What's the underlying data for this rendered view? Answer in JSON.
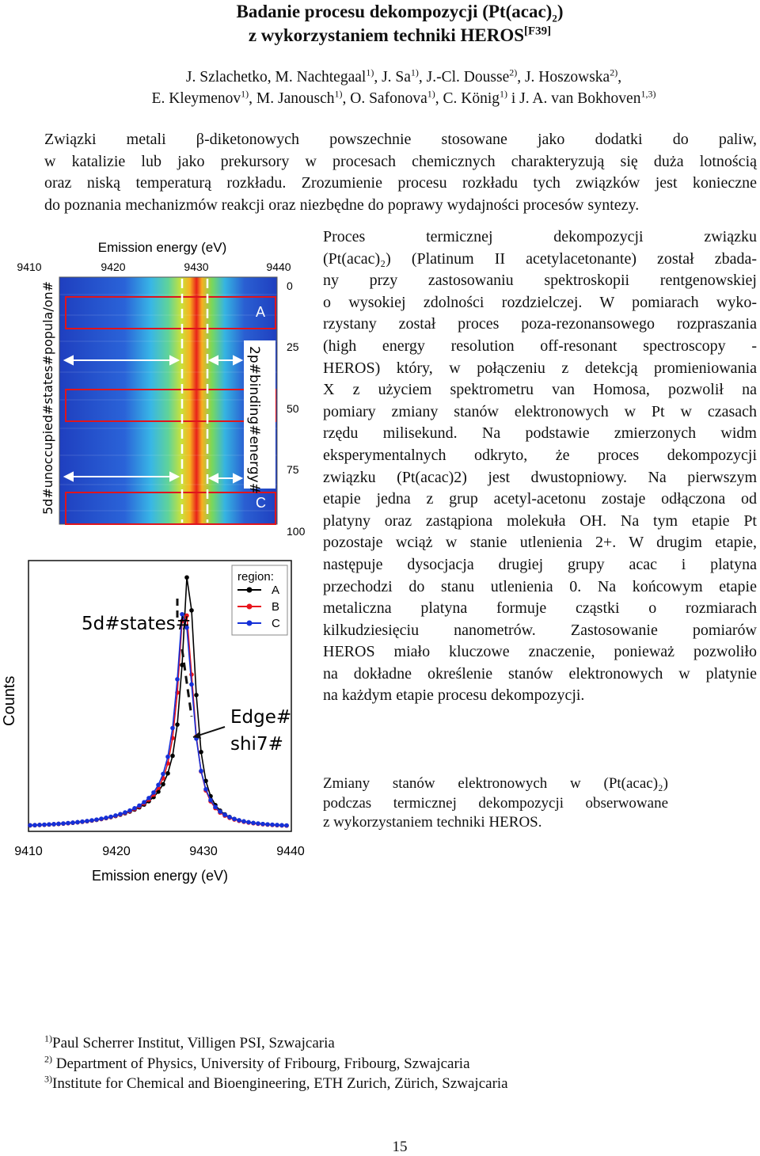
{
  "title": {
    "line1": "Badanie procesu dekompozycji (Pt(acac)",
    "line1_sub": "2",
    "line1_end": ")",
    "line2": "z wykorzystaniem techniki HEROS",
    "line2_sup": "[F39]"
  },
  "authors": {
    "line1": [
      {
        "name": "J. Szlachetko, ",
        "sup": ""
      },
      {
        "name": "M. Nachtegaal",
        "sup": "1)"
      },
      {
        "name": ", J. Sa",
        "sup": "1)"
      },
      {
        "name": ", J.-Cl. Dousse",
        "sup": "2)"
      },
      {
        "name": ", J. Hoszowska",
        "sup": "2)"
      },
      {
        "name": ",",
        "sup": ""
      }
    ],
    "line2": [
      {
        "name": "E. Kleymenov",
        "sup": "1)"
      },
      {
        "name": ", M. Janousch",
        "sup": "1)"
      },
      {
        "name": ", O. Safonova",
        "sup": "1)"
      },
      {
        "name": ", C. König",
        "sup": "1)"
      },
      {
        "name": " i J. A. van Bokhoven",
        "sup": "1,3)"
      }
    ]
  },
  "intro": [
    "Związki metali β-diketonowych powszechnie stosowane jako dodatki do paliw,",
    "w katalizie lub jako prekursory w procesach chemicznych charakteryzują się duża lotnością",
    "oraz niską temperaturą rozkładu. Zrozumienie procesu rozkładu tych związków jest konieczne",
    "do poznania mechanizmów reakcji oraz niezbędne do poprawy wydajności procesów syntezy."
  ],
  "body": [
    "Proces termicznej dekompozycji związku",
    "(Pt(acac)₂) (Platinum II acetylacetonante) został zbada-",
    "ny przy zastosowaniu spektroskopii rentgenowskiej",
    "o wysokiej zdolności rozdzielczej. W pomiarach wyko-",
    "rzystany został proces poza-rezonansowego rozpraszania",
    "(high energy resolution off-resonant spectroscopy -",
    "HEROS) który, w połączeniu z detekcją promieniowania",
    "X z użyciem spektrometru van Homosa, pozwolił na",
    "pomiary zmiany stanów elektronowych w Pt w czasach",
    "rzędu milisekund. Na podstawie zmierzonych widm",
    "eksperymentalnych odkryto, że proces dekompozycji",
    "związku (Pt(acac)2) jest dwustopniowy. Na pierwszym",
    "etapie jedna z grup acetyl-acetonu zostaje odłączona od",
    "platyny oraz zastąpiona molekuła OH. Na tym etapie Pt",
    "pozostaje wciąż w stanie utlenienia 2+. W drugim etapie,",
    "następuje dysocjacja drugiej grupy acac i platyna",
    "przechodzi do stanu utlenienia 0. Na końcowym etapie",
    "metaliczna platyna formuje cząstki o rozmiarach",
    "kilkudziesięciu nanometrów. Zastosowanie pomiarów",
    "HEROS miało kluczowe znaczenie, ponieważ pozwoliło",
    "na dokładne określenie stanów elektronowych w platynie",
    "na każdym etapie procesu dekompozycji."
  ],
  "caption": [
    "Zmiany stanów elektronowych w (Pt(acac)₂)",
    "podczas termicznej dekompozycji obserwowane",
    "z wykorzystaniem techniki HEROS."
  ],
  "figure": {
    "top_axis_title": "Emission energy (eV)",
    "top_ticks": [
      "9410",
      "9420",
      "9430",
      "9440"
    ],
    "right_ticks": [
      "0",
      "25",
      "50",
      "75",
      "100"
    ],
    "left_vertical_label": "5d#unoccupied#states#popula/on#",
    "mid_vertical_label": "2p#binding#energy#",
    "region_A": "A",
    "region_C": "C",
    "bottom_axis_title": "Emission energy (eV)",
    "bottom_ticks": [
      "9410",
      "9420",
      "9430",
      "9440"
    ],
    "y_label": "Counts",
    "label_5d": "5d#states#",
    "label_edge1": "Edge#",
    "label_edge2": "shi7#",
    "legend_title": "region:",
    "legend_items": [
      {
        "label": "A",
        "color": "#000000"
      },
      {
        "label": "B",
        "color": "#e8141c"
      },
      {
        "label": "C",
        "color": "#1530d8"
      }
    ]
  },
  "affiliations": [
    {
      "sup": "1)",
      "text": "Paul Scherrer Institut, Villigen PSI, Szwajcaria"
    },
    {
      "sup": "2)",
      "text": " Department of Physics, University of Fribourg, Fribourg, Szwajcaria"
    },
    {
      "sup": "3)",
      "text": "Institute for Chemical and Bioengineering, ETH Zurich, Zürich, Szwajcaria"
    }
  ],
  "page_number": "15"
}
